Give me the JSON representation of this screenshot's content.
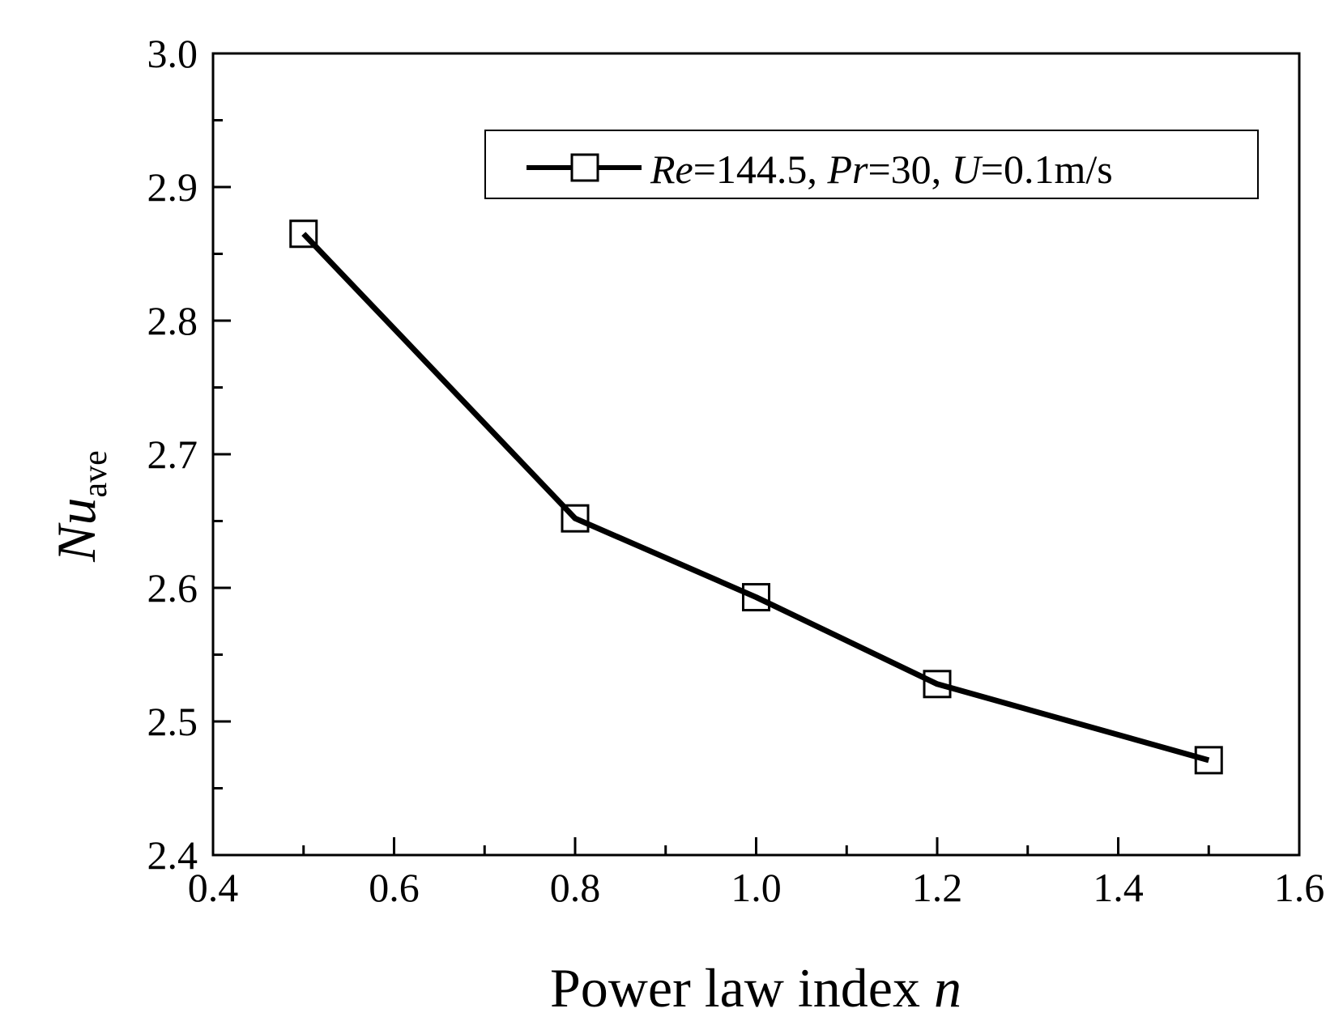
{
  "chart_data": {
    "type": "line",
    "title": "",
    "xlabel": "Power law index",
    "xlabel_var": "n",
    "ylabel_main": "Nu",
    "ylabel_sub": "ave",
    "xlim": [
      0.4,
      1.6
    ],
    "ylim": [
      2.4,
      3.0
    ],
    "x_major_ticks": [
      0.4,
      0.6,
      0.8,
      1.0,
      1.2,
      1.4,
      1.6
    ],
    "x_tick_labels": [
      "0.4",
      "0.6",
      "0.8",
      "1.0",
      "1.2",
      "1.4",
      "1.6"
    ],
    "y_major_ticks": [
      2.4,
      2.5,
      2.6,
      2.7,
      2.8,
      2.9,
      3.0
    ],
    "y_tick_labels": [
      "2.4",
      "2.5",
      "2.6",
      "2.7",
      "2.8",
      "2.9",
      "3.0"
    ],
    "grid": false,
    "legend_position": "top-right",
    "series": [
      {
        "name": "Re=144.5, Pr=30, U=0.1m/s",
        "color": "#000000",
        "marker": "open-square",
        "x": [
          0.5,
          0.8,
          1.0,
          1.2,
          1.5
        ],
        "y": [
          2.865,
          2.652,
          2.593,
          2.528,
          2.471
        ]
      }
    ],
    "legend": {
      "re_label": "Re",
      "re_value": "=144.5, ",
      "pr_label": "Pr",
      "pr_value": "=30, ",
      "u_label": "U",
      "u_value": "=0.1m/s"
    }
  }
}
